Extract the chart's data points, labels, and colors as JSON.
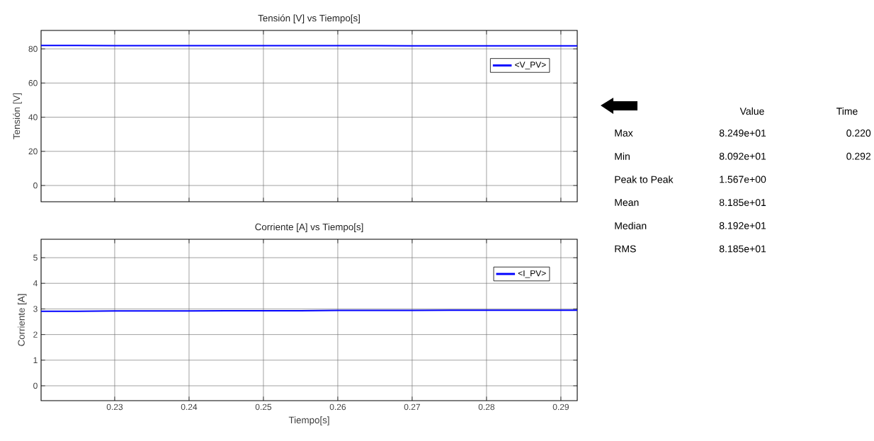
{
  "chart_data": [
    {
      "type": "line",
      "title": "Tensión [V] vs Tiempo[s]",
      "ylabel": "Tensión [V]",
      "x": [
        0.2201,
        0.225,
        0.23,
        0.235,
        0.24,
        0.245,
        0.25,
        0.255,
        0.26,
        0.265,
        0.27,
        0.275,
        0.28,
        0.285,
        0.29,
        0.2922
      ],
      "series": [
        {
          "name": "<V_PV>",
          "color": "#0000ff",
          "values": [
            82.0,
            82.0,
            81.9,
            81.9,
            81.9,
            81.9,
            81.9,
            81.9,
            81.9,
            81.9,
            81.8,
            81.8,
            81.8,
            81.8,
            81.8,
            81.8
          ]
        }
      ],
      "xlim": [
        0.2201,
        0.2922
      ],
      "ylim": [
        -9.5,
        90.8
      ],
      "xticks": [
        0.23,
        0.24,
        0.25,
        0.26,
        0.27,
        0.28,
        0.29
      ],
      "yticks": [
        0,
        20,
        40,
        60,
        80
      ],
      "grid": true,
      "legend": "top right",
      "tick_labels": "y"
    },
    {
      "type": "line",
      "title": "Corriente [A] vs Tiempo[s]",
      "xlabel": "Tiempo[s]",
      "ylabel": "Corriente [A]",
      "x": [
        0.2201,
        0.225,
        0.23,
        0.235,
        0.24,
        0.245,
        0.25,
        0.255,
        0.26,
        0.265,
        0.27,
        0.275,
        0.28,
        0.285,
        0.29,
        0.2922
      ],
      "series": [
        {
          "name": "<I_PV>",
          "color": "#0000ff",
          "values": [
            2.91,
            2.91,
            2.92,
            2.92,
            2.92,
            2.93,
            2.93,
            2.93,
            2.94,
            2.94,
            2.94,
            2.95,
            2.95,
            2.95,
            2.95,
            2.95
          ]
        }
      ],
      "xlim": [
        0.2201,
        0.2922
      ],
      "ylim": [
        -0.58,
        5.72
      ],
      "xticks": [
        0.23,
        0.24,
        0.25,
        0.26,
        0.27,
        0.28,
        0.29
      ],
      "yticks": [
        0,
        1,
        2,
        3,
        4,
        5
      ],
      "grid": true,
      "legend": "top right"
    },
    {
      "type": "other",
      "categories": [
        "Max",
        "Min",
        "Peak to Peak",
        "Mean",
        "Median",
        "RMS"
      ],
      "series": [
        {
          "name": "Value",
          "values": [
            82.49,
            80.92,
            1.567,
            81.85,
            81.92,
            81.85
          ],
          "value_labels": [
            "8.249e+01",
            "8.092e+01",
            "1.567e+00",
            "8.185e+01",
            "8.192e+01",
            "8.185e+01"
          ]
        },
        {
          "name": "Time",
          "values": [
            0.22,
            0.292,
            null,
            null,
            null,
            null
          ],
          "value_labels": [
            "0.220",
            "0.292",
            null,
            null,
            null,
            null
          ]
        }
      ]
    }
  ]
}
